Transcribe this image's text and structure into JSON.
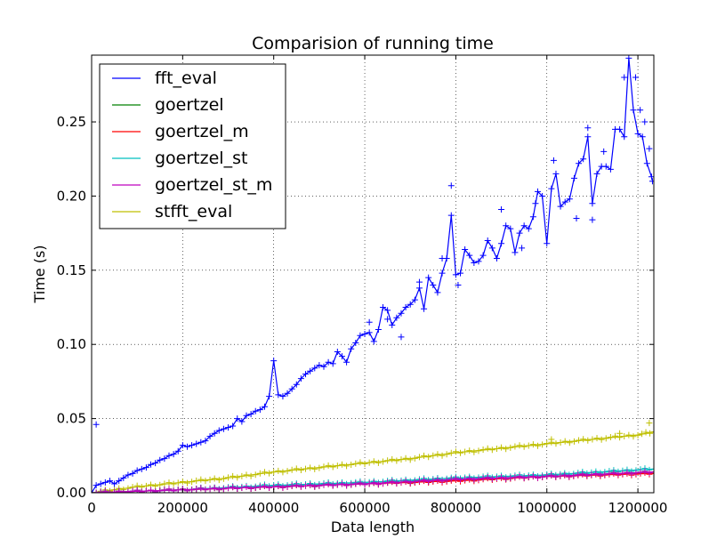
{
  "chart_data": {
    "type": "line",
    "title": "Comparision of running time",
    "xlabel": "Data length",
    "ylabel": "Time (s)",
    "xlim": [
      0,
      1235000
    ],
    "ylim": [
      0,
      0.295
    ],
    "xticks": [
      0,
      200000,
      400000,
      600000,
      800000,
      1000000,
      1200000
    ],
    "xtick_labels": [
      "0",
      "200000",
      "400000",
      "600000",
      "800000",
      "1000000",
      "1200000"
    ],
    "yticks": [
      0,
      0.05,
      0.1,
      0.15,
      0.2,
      0.25
    ],
    "ytick_labels": [
      "0.00",
      "0.05",
      "0.10",
      "0.15",
      "0.20",
      "0.25"
    ],
    "grid": true,
    "legend_position": "top-left",
    "markers": "+ (raw samples) with solid line (smoothed)",
    "series": [
      {
        "name": "fft_eval",
        "color": "#0000ff",
        "line": [
          [
            0,
            0.0
          ],
          [
            10000,
            0.005
          ],
          [
            20000,
            0.006
          ],
          [
            30000,
            0.007
          ],
          [
            40000,
            0.008
          ],
          [
            50000,
            0.006
          ],
          [
            60000,
            0.008
          ],
          [
            70000,
            0.01
          ],
          [
            80000,
            0.012
          ],
          [
            90000,
            0.013
          ],
          [
            100000,
            0.015
          ],
          [
            110000,
            0.016
          ],
          [
            120000,
            0.017
          ],
          [
            130000,
            0.019
          ],
          [
            140000,
            0.02
          ],
          [
            150000,
            0.022
          ],
          [
            160000,
            0.023
          ],
          [
            170000,
            0.025
          ],
          [
            180000,
            0.026
          ],
          [
            190000,
            0.028
          ],
          [
            200000,
            0.032
          ],
          [
            210000,
            0.031
          ],
          [
            220000,
            0.032
          ],
          [
            230000,
            0.033
          ],
          [
            240000,
            0.034
          ],
          [
            250000,
            0.035
          ],
          [
            260000,
            0.038
          ],
          [
            270000,
            0.04
          ],
          [
            280000,
            0.042
          ],
          [
            290000,
            0.043
          ],
          [
            300000,
            0.044
          ],
          [
            310000,
            0.045
          ],
          [
            320000,
            0.05
          ],
          [
            330000,
            0.048
          ],
          [
            340000,
            0.052
          ],
          [
            350000,
            0.053
          ],
          [
            360000,
            0.055
          ],
          [
            370000,
            0.056
          ],
          [
            380000,
            0.058
          ],
          [
            390000,
            0.065
          ],
          [
            400000,
            0.089
          ],
          [
            410000,
            0.066
          ],
          [
            420000,
            0.065
          ],
          [
            430000,
            0.067
          ],
          [
            440000,
            0.07
          ],
          [
            450000,
            0.073
          ],
          [
            460000,
            0.077
          ],
          [
            470000,
            0.08
          ],
          [
            480000,
            0.082
          ],
          [
            490000,
            0.084
          ],
          [
            500000,
            0.086
          ],
          [
            510000,
            0.085
          ],
          [
            520000,
            0.088
          ],
          [
            530000,
            0.087
          ],
          [
            540000,
            0.095
          ],
          [
            550000,
            0.092
          ],
          [
            560000,
            0.088
          ],
          [
            570000,
            0.097
          ],
          [
            580000,
            0.101
          ],
          [
            590000,
            0.106
          ],
          [
            600000,
            0.107
          ],
          [
            610000,
            0.108
          ],
          [
            620000,
            0.102
          ],
          [
            630000,
            0.11
          ],
          [
            640000,
            0.125
          ],
          [
            650000,
            0.123
          ],
          [
            660000,
            0.113
          ],
          [
            670000,
            0.118
          ],
          [
            680000,
            0.121
          ],
          [
            690000,
            0.125
          ],
          [
            700000,
            0.127
          ],
          [
            710000,
            0.13
          ],
          [
            720000,
            0.138
          ],
          [
            730000,
            0.124
          ],
          [
            740000,
            0.145
          ],
          [
            750000,
            0.14
          ],
          [
            760000,
            0.135
          ],
          [
            770000,
            0.148
          ],
          [
            780000,
            0.158
          ],
          [
            790000,
            0.187
          ],
          [
            800000,
            0.147
          ],
          [
            810000,
            0.148
          ],
          [
            820000,
            0.164
          ],
          [
            830000,
            0.16
          ],
          [
            840000,
            0.155
          ],
          [
            850000,
            0.156
          ],
          [
            860000,
            0.16
          ],
          [
            870000,
            0.17
          ],
          [
            880000,
            0.165
          ],
          [
            890000,
            0.158
          ],
          [
            900000,
            0.168
          ],
          [
            910000,
            0.18
          ],
          [
            920000,
            0.178
          ],
          [
            930000,
            0.162
          ],
          [
            940000,
            0.175
          ],
          [
            950000,
            0.18
          ],
          [
            960000,
            0.178
          ],
          [
            970000,
            0.186
          ],
          [
            980000,
            0.203
          ],
          [
            990000,
            0.2
          ],
          [
            1000000,
            0.168
          ],
          [
            1010000,
            0.205
          ],
          [
            1020000,
            0.215
          ],
          [
            1030000,
            0.193
          ],
          [
            1040000,
            0.196
          ],
          [
            1050000,
            0.198
          ],
          [
            1060000,
            0.212
          ],
          [
            1070000,
            0.222
          ],
          [
            1080000,
            0.225
          ],
          [
            1090000,
            0.24
          ],
          [
            1100000,
            0.195
          ],
          [
            1110000,
            0.215
          ],
          [
            1120000,
            0.22
          ],
          [
            1130000,
            0.22
          ],
          [
            1140000,
            0.218
          ],
          [
            1150000,
            0.245
          ],
          [
            1160000,
            0.245
          ],
          [
            1170000,
            0.24
          ],
          [
            1180000,
            0.293
          ],
          [
            1190000,
            0.258
          ],
          [
            1200000,
            0.242
          ],
          [
            1210000,
            0.24
          ],
          [
            1220000,
            0.222
          ],
          [
            1230000,
            0.213
          ]
        ],
        "outliers": [
          [
            10000,
            0.046
          ],
          [
            790000,
            0.207
          ],
          [
            805000,
            0.14
          ],
          [
            770000,
            0.158
          ],
          [
            1090000,
            0.246
          ],
          [
            1100000,
            0.184
          ],
          [
            1170000,
            0.28
          ],
          [
            1195000,
            0.28
          ],
          [
            1205000,
            0.258
          ],
          [
            1215000,
            0.25
          ],
          [
            1225000,
            0.232
          ],
          [
            1232000,
            0.21
          ],
          [
            610000,
            0.115
          ],
          [
            650000,
            0.117
          ],
          [
            680000,
            0.105
          ],
          [
            720000,
            0.142
          ],
          [
            900000,
            0.191
          ],
          [
            945000,
            0.165
          ],
          [
            975000,
            0.195
          ],
          [
            1015000,
            0.224
          ],
          [
            1065000,
            0.185
          ],
          [
            1125000,
            0.23
          ]
        ]
      },
      {
        "name": "goertzel",
        "color": "#008000",
        "line": [
          [
            0,
            0.0
          ],
          [
            200000,
            0.002
          ],
          [
            400000,
            0.004
          ],
          [
            600000,
            0.006
          ],
          [
            800000,
            0.009
          ],
          [
            1000000,
            0.011
          ],
          [
            1235000,
            0.014
          ]
        ]
      },
      {
        "name": "goertzel_m",
        "color": "#ff0000",
        "line": [
          [
            0,
            0.0
          ],
          [
            200000,
            0.002
          ],
          [
            400000,
            0.004
          ],
          [
            600000,
            0.006
          ],
          [
            800000,
            0.008
          ],
          [
            1000000,
            0.011
          ],
          [
            1235000,
            0.013
          ]
        ]
      },
      {
        "name": "goertzel_st",
        "color": "#00bfbf",
        "line": [
          [
            0,
            0.0
          ],
          [
            200000,
            0.002
          ],
          [
            400000,
            0.005
          ],
          [
            600000,
            0.007
          ],
          [
            800000,
            0.01
          ],
          [
            1000000,
            0.012
          ],
          [
            1235000,
            0.016
          ]
        ]
      },
      {
        "name": "goertzel_st_m",
        "color": "#bf00bf",
        "line": [
          [
            0,
            0.0
          ],
          [
            200000,
            0.002
          ],
          [
            400000,
            0.004
          ],
          [
            600000,
            0.006
          ],
          [
            800000,
            0.009
          ],
          [
            1000000,
            0.011
          ],
          [
            1235000,
            0.014
          ]
        ]
      },
      {
        "name": "stfft_eval",
        "color": "#bfbf00",
        "line": [
          [
            0,
            0.0
          ],
          [
            100000,
            0.004
          ],
          [
            200000,
            0.007
          ],
          [
            300000,
            0.01
          ],
          [
            400000,
            0.014
          ],
          [
            500000,
            0.017
          ],
          [
            600000,
            0.02
          ],
          [
            700000,
            0.023
          ],
          [
            800000,
            0.027
          ],
          [
            900000,
            0.03
          ],
          [
            1000000,
            0.033
          ],
          [
            1100000,
            0.036
          ],
          [
            1200000,
            0.039
          ],
          [
            1235000,
            0.041
          ]
        ],
        "outliers": [
          [
            1225000,
            0.047
          ],
          [
            1160000,
            0.04
          ],
          [
            1010000,
            0.036
          ]
        ]
      }
    ]
  }
}
